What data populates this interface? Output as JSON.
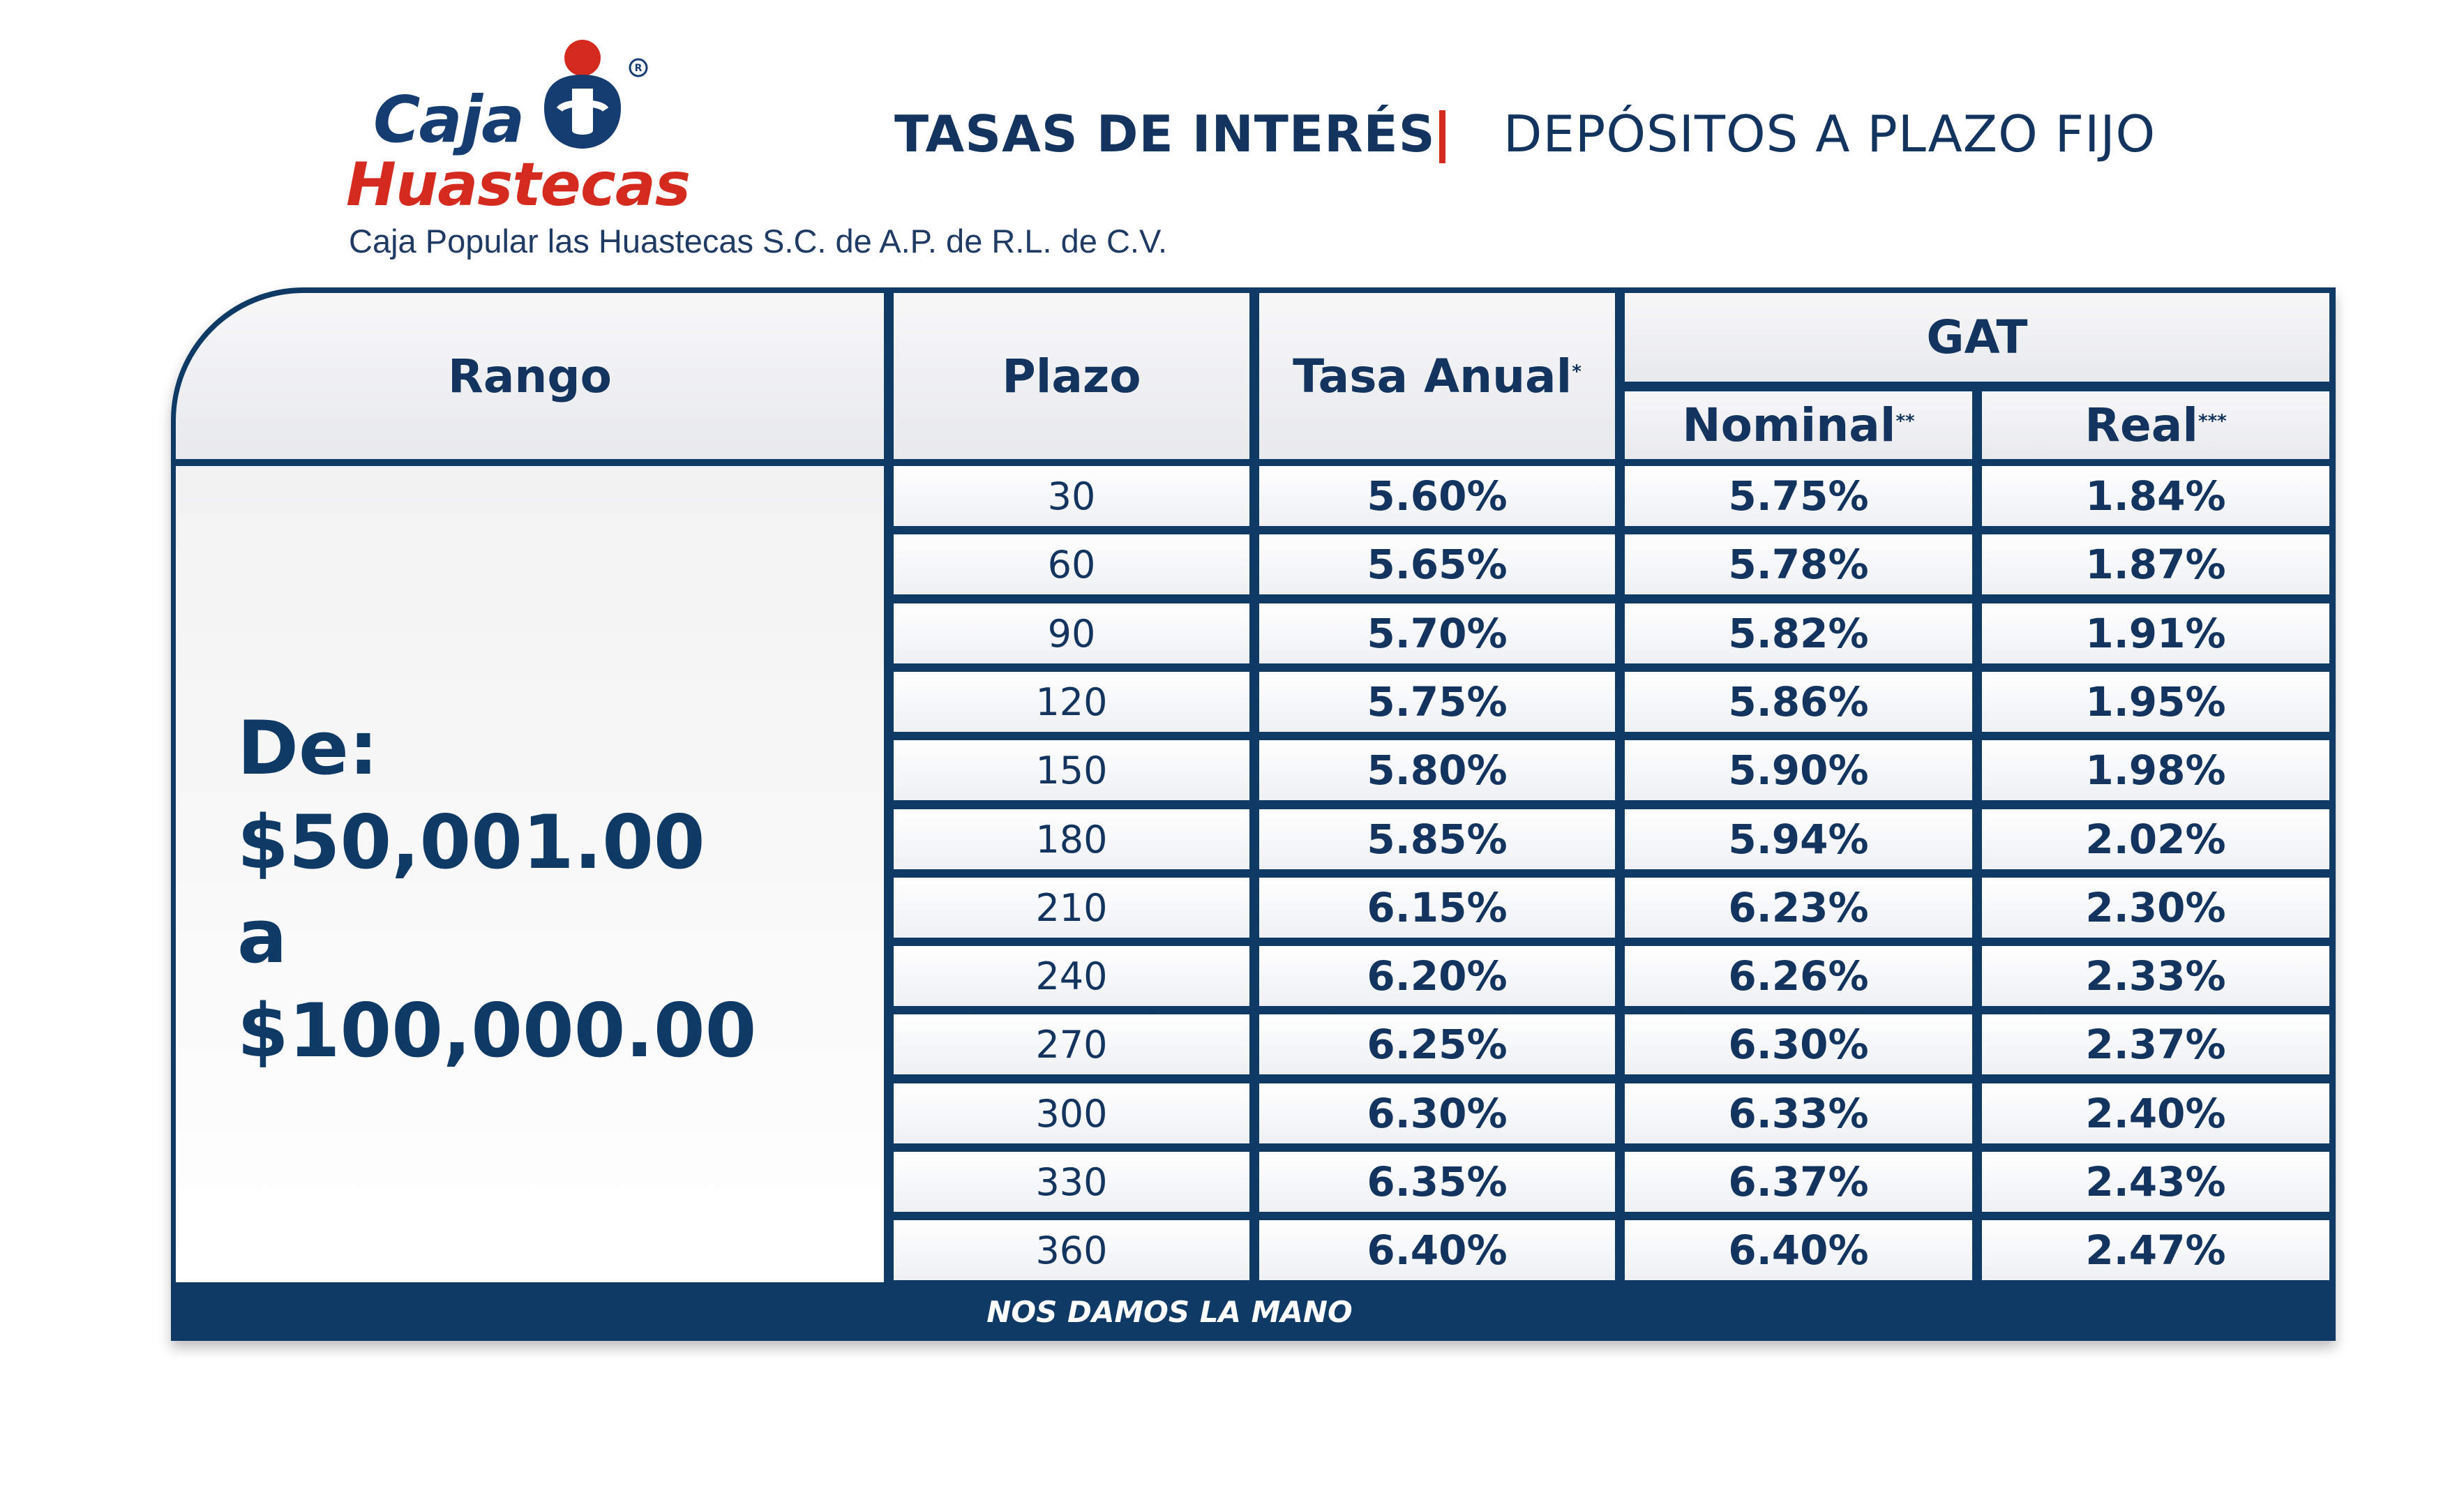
{
  "brand": {
    "name_line1": "Caja",
    "name_line2": "Huastecas",
    "subtitle": "Caja Popular las Huastecas S.C. de A.P.  de R.L. de C.V.",
    "colors": {
      "navy": "#0f3a66",
      "red": "#d52b1e"
    }
  },
  "header": {
    "left": "TASAS DE INTERÉS",
    "separator": "|",
    "right": "DEPÓSITOS A PLAZO FIJO"
  },
  "table": {
    "columns": {
      "rango": "Rango",
      "plazo": "Plazo",
      "tasa": "Tasa Anual",
      "tasa_mark": "*",
      "gat": "GAT",
      "nominal": "Nominal",
      "nominal_mark": "**",
      "real": "Real",
      "real_mark": "***"
    },
    "range": {
      "line1": "De:",
      "line2": "$50,001.00",
      "line3": "a",
      "line4": "$100,000.00"
    },
    "rows": [
      {
        "plazo": "30",
        "tasa": "5.60%",
        "nominal": "5.75%",
        "real": "1.84%"
      },
      {
        "plazo": "60",
        "tasa": "5.65%",
        "nominal": "5.78%",
        "real": "1.87%"
      },
      {
        "plazo": "90",
        "tasa": "5.70%",
        "nominal": "5.82%",
        "real": "1.91%"
      },
      {
        "plazo": "120",
        "tasa": "5.75%",
        "nominal": "5.86%",
        "real": "1.95%"
      },
      {
        "plazo": "150",
        "tasa": "5.80%",
        "nominal": "5.90%",
        "real": "1.98%"
      },
      {
        "plazo": "180",
        "tasa": "5.85%",
        "nominal": "5.94%",
        "real": "2.02%"
      },
      {
        "plazo": "210",
        "tasa": "6.15%",
        "nominal": "6.23%",
        "real": "2.30%"
      },
      {
        "plazo": "240",
        "tasa": "6.20%",
        "nominal": "6.26%",
        "real": "2.33%"
      },
      {
        "plazo": "270",
        "tasa": "6.25%",
        "nominal": "6.30%",
        "real": "2.37%"
      },
      {
        "plazo": "300",
        "tasa": "6.30%",
        "nominal": "6.33%",
        "real": "2.40%"
      },
      {
        "plazo": "330",
        "tasa": "6.35%",
        "nominal": "6.37%",
        "real": "2.43%"
      },
      {
        "plazo": "360",
        "tasa": "6.40%",
        "nominal": "6.40%",
        "real": "2.47%"
      }
    ]
  },
  "footer": {
    "slogan": "NOS DAMOS LA MANO"
  }
}
